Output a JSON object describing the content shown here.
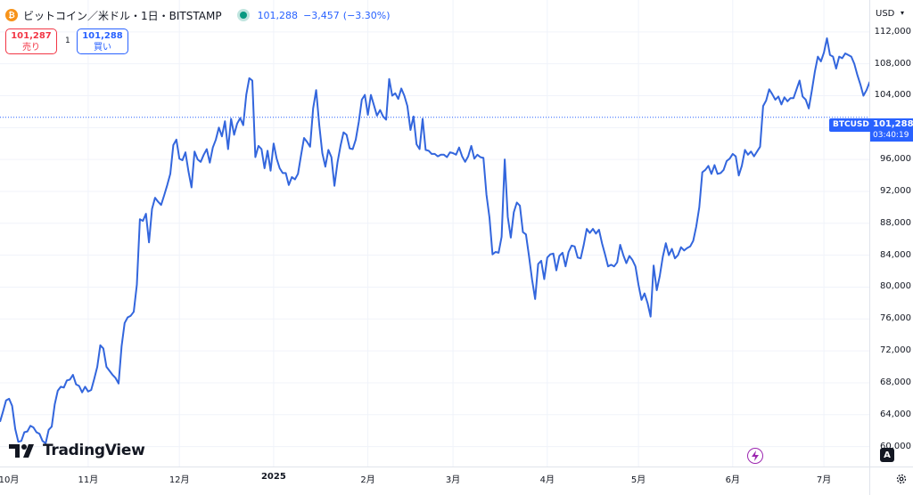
{
  "header": {
    "coin_symbol": "₿",
    "title": "ビットコイン／米ドル・1日・BITSTAMP",
    "price": "101,288",
    "change": "−3,457",
    "change_pct": "(−3.30%)"
  },
  "trade": {
    "sell_price": "101,287",
    "sell_label": "売り",
    "spread": "1",
    "buy_price": "101,288",
    "buy_label": "買い"
  },
  "currency": "USD",
  "symbol_tag": "BTCUSD",
  "last_price": {
    "price": "101,288",
    "countdown": "03:40:19"
  },
  "logo_text": "TradingView",
  "a_button": "A",
  "colors": {
    "line": "#3366dd",
    "accent": "#2962ff",
    "sell": "#f23645",
    "up": "#089981"
  },
  "chart_data": {
    "type": "line",
    "series": [
      {
        "values": [
          63100,
          64400,
          65800,
          66000,
          65100,
          62200,
          60600,
          60700,
          61800,
          61900,
          62600,
          62400,
          61800,
          61600,
          60700,
          60400,
          62100,
          62500,
          65300,
          67000,
          67500,
          67400,
          68300,
          68400,
          69000,
          67800,
          67600,
          66800,
          67500,
          66900,
          67100,
          68500,
          70000,
          72700,
          72300,
          70000,
          69500,
          69000,
          68600,
          67900,
          72600,
          75500,
          76200,
          76400,
          76900,
          80300,
          88500,
          88300,
          89200,
          85600,
          89800,
          91200,
          90700,
          90300,
          91500,
          92800,
          94200,
          97800,
          98500,
          96100,
          95900,
          96900,
          94500,
          92500,
          97000,
          96000,
          95700,
          96600,
          97300,
          95600,
          97500,
          98500,
          100000,
          98900,
          100800,
          97300,
          101100,
          99100,
          100500,
          101200,
          100300,
          104100,
          106200,
          105900,
          96300,
          97700,
          97300,
          94900,
          97100,
          94600,
          98000,
          96100,
          94900,
          94300,
          94300,
          92800,
          93800,
          93500,
          94200,
          96500,
          98700,
          98200,
          97600,
          102400,
          104700,
          100300,
          96800,
          95100,
          97200,
          96300,
          92700,
          95600,
          97700,
          99400,
          99100,
          97400,
          97300,
          98500,
          100700,
          103500,
          104100,
          101600,
          104100,
          102800,
          101500,
          102200,
          101400,
          101000,
          106100,
          104000,
          104300,
          103600,
          104900,
          104000,
          102700,
          99700,
          101400,
          97900,
          97300,
          101100,
          97200,
          97100,
          96700,
          96700,
          96400,
          96600,
          96600,
          96300,
          96900,
          96800,
          96600,
          97500,
          96400,
          95700,
          96400,
          97700,
          96100,
          96600,
          96300,
          96200,
          91600,
          88700,
          84100,
          84400,
          84300,
          86300,
          96000,
          88800,
          86200,
          89400,
          90600,
          90200,
          86900,
          86600,
          83900,
          80900,
          78500,
          82900,
          83300,
          81000,
          83700,
          84100,
          84200,
          82100,
          83900,
          84300,
          82600,
          84400,
          85200,
          85100,
          83700,
          83600,
          85300,
          87300,
          86800,
          87300,
          86700,
          87200,
          85500,
          84100,
          82600,
          82800,
          82600,
          83100,
          85300,
          84000,
          83000,
          83900,
          83400,
          82600,
          80300,
          78400,
          79200,
          78000,
          76300,
          82700,
          79600,
          81400,
          83800,
          85500,
          84000,
          84800,
          83600,
          84000,
          85000,
          84600,
          84900,
          85100,
          85800,
          87600,
          90000,
          94400,
          94700,
          95200,
          94200,
          95300,
          94200,
          94300,
          94700,
          95800,
          96100,
          96700,
          96400,
          94000,
          95200,
          97200,
          96600,
          97000,
          96400,
          97000,
          97600,
          102700,
          103400,
          104800,
          104200,
          103500,
          103900,
          102900,
          103800,
          103300,
          103700,
          103700,
          104800,
          105900,
          103900,
          103500,
          102400,
          104600,
          107000,
          108900,
          108300,
          109400,
          111200,
          109100,
          108900,
          107400,
          108900,
          108700,
          109300,
          109100,
          108900,
          108000,
          106600,
          105400,
          104000,
          104700,
          105700,
          105800,
          105500,
          105000,
          101300
        ]
      }
    ],
    "x_ticks": [
      {
        "label": "10月",
        "index": -2
      },
      {
        "label": "11月",
        "index": 29
      },
      {
        "label": "12月",
        "index": 59
      },
      {
        "label": "2025",
        "index": 90,
        "bold": true
      },
      {
        "label": "2月",
        "index": 121
      },
      {
        "label": "3月",
        "index": 149
      },
      {
        "label": "4月",
        "index": 180
      },
      {
        "label": "5月",
        "index": 210
      },
      {
        "label": "6月",
        "index": 241
      },
      {
        "label": "7月",
        "index": 271
      }
    ],
    "y_ticks": [
      60000,
      64000,
      68000,
      72000,
      76000,
      80000,
      84000,
      88000,
      92000,
      96000,
      100000,
      104000,
      108000,
      112000
    ],
    "y_tick_labels": [
      "60,000",
      "64,000",
      "68,000",
      "72,000",
      "76,000",
      "80,000",
      "84,000",
      "88,000",
      "92,000",
      "96,000",
      "",
      "104,000",
      "108,000",
      "112,000"
    ],
    "last_value": 101288,
    "ylim": [
      57500,
      116000
    ],
    "grid": true
  }
}
